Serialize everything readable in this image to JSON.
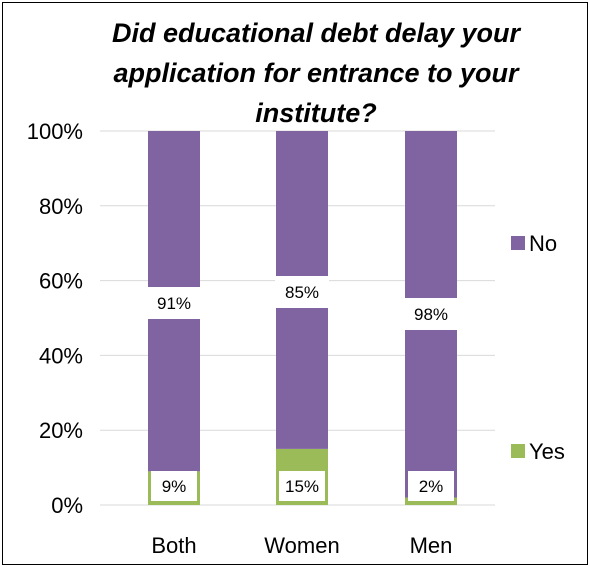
{
  "chart_data": {
    "type": "bar",
    "stacked": true,
    "title_lines": [
      "Did educational debt delay your",
      "application for entrance to your",
      "institute?"
    ],
    "categories": [
      "Both",
      "Women",
      "Men"
    ],
    "y_ticks": [
      "0%",
      "20%",
      "40%",
      "60%",
      "80%",
      "100%"
    ],
    "ylim": [
      0,
      100
    ],
    "series": [
      {
        "name": "Yes",
        "values": [
          9,
          15,
          2
        ],
        "labels": [
          "9%",
          "15%",
          "2%"
        ],
        "color": "#9bbb59"
      },
      {
        "name": "No",
        "values": [
          91,
          85,
          98
        ],
        "labels": [
          "91%",
          "85%",
          "98%"
        ],
        "color": "#8064a2"
      }
    ],
    "legend_placement": "right",
    "grid": true
  }
}
